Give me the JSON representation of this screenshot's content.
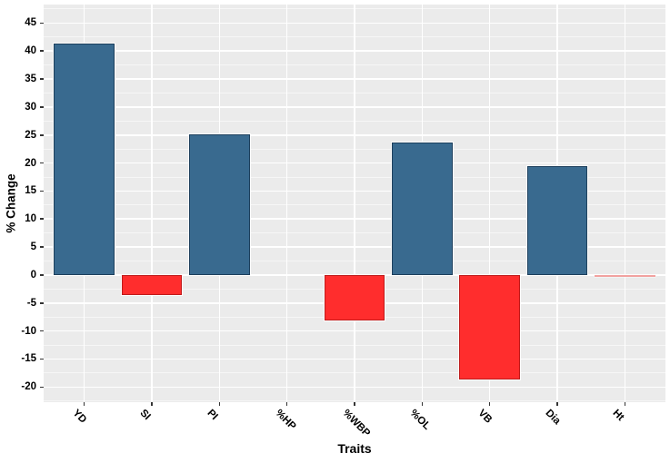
{
  "chart_data": {
    "type": "bar",
    "title": "",
    "categories": [
      "YD",
      "SI",
      "PI",
      "%HP",
      "%WBP",
      "%OL",
      "VB",
      "Dia",
      "Ht"
    ],
    "values": [
      41.3,
      -3.5,
      25.1,
      0,
      -8.1,
      23.6,
      -18.6,
      19.4,
      -0.2
    ],
    "xlabel": "Traits",
    "ylabel": "% Change",
    "ylim": [
      -22.7,
      48.3
    ],
    "yticks": [
      -20,
      -15,
      -10,
      -5,
      0,
      5,
      10,
      15,
      20,
      25,
      30,
      35,
      40,
      45
    ],
    "minor_tick_interval": 2.5,
    "legend": "none",
    "grid": "horizontal major+minor white gridlines and vertical category gridlines on gray panel (ggplot2 style)",
    "colors": {
      "positive_bar": "#396A8F",
      "negative_bar": "#FF2D2D",
      "near_zero_bar": "#F2A2A0",
      "panel_background": "#EBEBEB",
      "grid_major": "#FFFFFF",
      "grid_minor": "#F6F6F6",
      "tick": "#333333",
      "text": "#000000"
    }
  }
}
